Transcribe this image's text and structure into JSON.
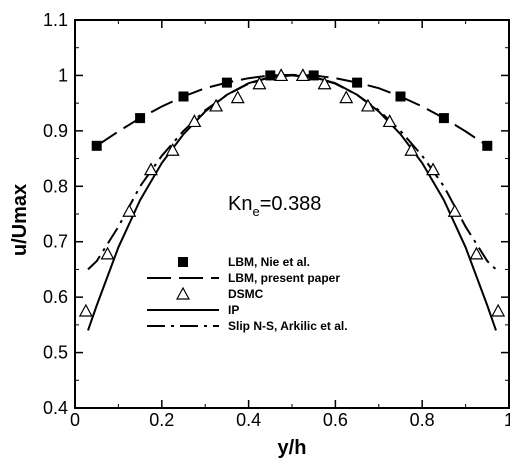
{
  "chart_data": {
    "type": "line",
    "xlabel": "y/h",
    "ylabel": "u/Umax",
    "xlim": [
      0,
      1
    ],
    "ylim": [
      0.4,
      1.1
    ],
    "xticks": [
      0,
      0.2,
      0.4,
      0.6,
      0.8,
      1
    ],
    "xtick_labels": [
      "0",
      "0.2",
      "0.4",
      "0.6",
      "0.8",
      "1"
    ],
    "yticks": [
      0.4,
      0.5,
      0.6,
      0.7,
      0.8,
      0.9,
      1,
      1.1
    ],
    "ytick_labels": [
      "0.4",
      "0.5",
      "0.6",
      "0.7",
      "0.8",
      "0.9",
      "1",
      "1.1"
    ],
    "grid": false,
    "legend_position": "lower-center",
    "annotation": {
      "main": "Kn",
      "sub": "e",
      "rest": "=0.388",
      "x": 0.5,
      "y": 0.77
    },
    "series": [
      {
        "name": "LBM, Nie et al.",
        "style": "square-markers",
        "color": "#000000",
        "x": [
          0.05,
          0.15,
          0.25,
          0.35,
          0.45,
          0.55,
          0.65,
          0.75,
          0.85,
          0.95
        ],
        "y": [
          0.873,
          0.923,
          0.962,
          0.987,
          1.0,
          1.0,
          0.987,
          0.962,
          0.923,
          0.873
        ]
      },
      {
        "name": "LBM, present paper",
        "style": "long-dash",
        "color": "#000000",
        "x": [
          0.05,
          0.1,
          0.15,
          0.2,
          0.25,
          0.3,
          0.35,
          0.4,
          0.45,
          0.5,
          0.55,
          0.6,
          0.65,
          0.7,
          0.75,
          0.8,
          0.85,
          0.9,
          0.95
        ],
        "y": [
          0.873,
          0.899,
          0.923,
          0.944,
          0.962,
          0.977,
          0.987,
          0.995,
          1.0,
          1.001,
          1.0,
          0.995,
          0.987,
          0.977,
          0.962,
          0.944,
          0.923,
          0.899,
          0.873
        ]
      },
      {
        "name": "DSMC",
        "style": "triangle-markers",
        "color": "#000000",
        "x": [
          0.025,
          0.075,
          0.125,
          0.175,
          0.225,
          0.275,
          0.325,
          0.375,
          0.425,
          0.475,
          0.525,
          0.575,
          0.625,
          0.675,
          0.725,
          0.775,
          0.825,
          0.875,
          0.925,
          0.975
        ],
        "y": [
          0.575,
          0.678,
          0.755,
          0.83,
          0.865,
          0.917,
          0.945,
          0.96,
          0.985,
          1.0,
          1.0,
          0.985,
          0.96,
          0.945,
          0.917,
          0.865,
          0.83,
          0.755,
          0.678,
          0.575
        ]
      },
      {
        "name": "IP",
        "style": "solid",
        "color": "#000000",
        "x": [
          0.03,
          0.05,
          0.1,
          0.15,
          0.2,
          0.25,
          0.3,
          0.35,
          0.4,
          0.45,
          0.5,
          0.55,
          0.6,
          0.65,
          0.7,
          0.75,
          0.8,
          0.85,
          0.9,
          0.95,
          0.97
        ],
        "y": [
          0.54,
          0.585,
          0.69,
          0.775,
          0.842,
          0.894,
          0.935,
          0.965,
          0.986,
          0.997,
          1.0,
          0.997,
          0.986,
          0.965,
          0.935,
          0.894,
          0.842,
          0.775,
          0.69,
          0.585,
          0.54
        ]
      },
      {
        "name": "Slip N-S, Arkilic et al.",
        "style": "dash-dot",
        "color": "#000000",
        "x": [
          0.03,
          0.05,
          0.1,
          0.15,
          0.2,
          0.25,
          0.3,
          0.35,
          0.4,
          0.45,
          0.5,
          0.55,
          0.6,
          0.65,
          0.7,
          0.75,
          0.8,
          0.85,
          0.9,
          0.95,
          0.97
        ],
        "y": [
          0.65,
          0.665,
          0.727,
          0.8,
          0.855,
          0.9,
          0.937,
          0.965,
          0.985,
          0.997,
          1.0,
          0.997,
          0.985,
          0.965,
          0.937,
          0.9,
          0.855,
          0.8,
          0.727,
          0.665,
          0.65
        ]
      }
    ]
  }
}
